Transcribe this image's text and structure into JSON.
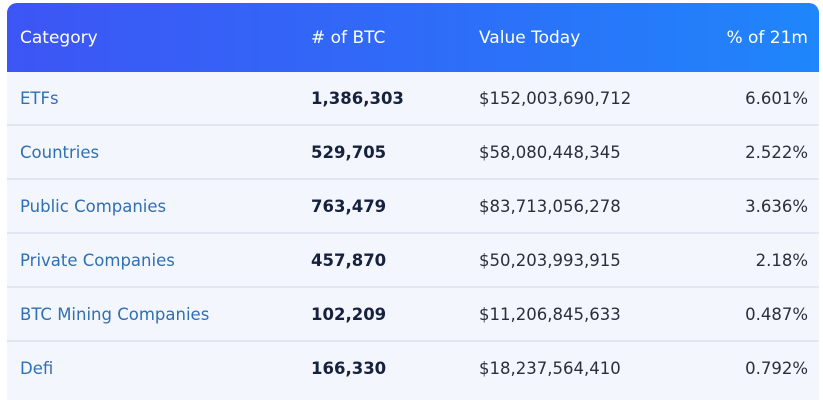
{
  "table": {
    "headers": {
      "category": "Category",
      "btc": "# of BTC",
      "value": "Value Today",
      "pct": "% of 21m"
    },
    "rows": [
      {
        "category": "ETFs",
        "btc": "1,386,303",
        "value": "$152,003,690,712",
        "pct": "6.601%"
      },
      {
        "category": "Countries",
        "btc": "529,705",
        "value": "$58,080,448,345",
        "pct": "2.522%"
      },
      {
        "category": "Public Companies",
        "btc": "763,479",
        "value": "$83,713,056,278",
        "pct": "3.636%"
      },
      {
        "category": "Private Companies",
        "btc": "457,870",
        "value": "$50,203,993,915",
        "pct": "2.18%"
      },
      {
        "category": "BTC Mining Companies",
        "btc": "102,209",
        "value": "$11,206,845,633",
        "pct": "0.487%"
      },
      {
        "category": "Defi",
        "btc": "166,330",
        "value": "$18,237,564,410",
        "pct": "0.792%"
      }
    ]
  },
  "colors": {
    "header_gradient_start": "#3d55f5",
    "header_gradient_end": "#1f86fb",
    "link": "#2f6fb3",
    "row_bg": "#f4f6fd"
  }
}
